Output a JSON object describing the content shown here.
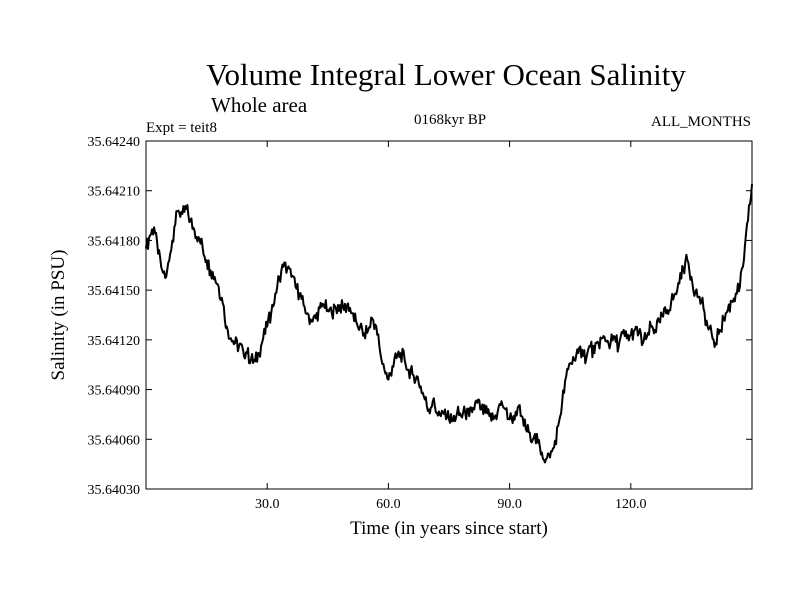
{
  "header": {
    "title": "Volume Integral Lower Ocean Salinity",
    "subtitle": "Whole area",
    "expt": "Expt = teit8",
    "period": "0168kyr BP",
    "months": "ALL_MONTHS"
  },
  "chart_data": {
    "type": "line",
    "title": "Volume Integral Lower Ocean Salinity",
    "subtitle": "Whole area",
    "xlabel": "Time (in years since start)",
    "ylabel": "Salinity (in PSU)",
    "xlim": [
      0,
      150
    ],
    "ylim": [
      35.6403,
      35.6424
    ],
    "x_ticks": [
      30,
      60,
      90,
      120
    ],
    "x_tick_labels": [
      "30.0",
      "60.0",
      "90.0",
      "120.0"
    ],
    "y_ticks": [
      35.6403,
      35.6406,
      35.6409,
      35.6412,
      35.6415,
      35.6418,
      35.6421,
      35.6424
    ],
    "y_tick_labels": [
      "35.64030",
      "35.64060",
      "35.64090",
      "35.64120",
      "35.64150",
      "35.64180",
      "35.64210",
      "35.64240"
    ],
    "series": [
      {
        "name": "Salinity",
        "color": "#000000",
        "x": [
          0,
          1,
          2,
          3,
          4,
          5,
          6,
          7,
          8,
          9,
          10,
          11,
          12,
          13,
          14,
          15,
          16,
          17,
          18,
          19,
          20,
          21,
          22,
          23,
          24,
          25,
          26,
          27,
          28,
          29,
          30,
          31,
          32,
          33,
          34,
          35,
          36,
          37,
          38,
          39,
          40,
          41,
          42,
          43,
          44,
          45,
          46,
          47,
          48,
          49,
          50,
          51,
          52,
          53,
          54,
          55,
          56,
          57,
          58,
          59,
          60,
          61,
          62,
          63,
          64,
          65,
          66,
          67,
          68,
          69,
          70,
          71,
          72,
          73,
          74,
          75,
          76,
          77,
          78,
          79,
          80,
          81,
          82,
          83,
          84,
          85,
          86,
          87,
          88,
          89,
          90,
          91,
          92,
          93,
          94,
          95,
          96,
          97,
          98,
          99,
          100,
          101,
          102,
          103,
          104,
          105,
          106,
          107,
          108,
          109,
          110,
          111,
          112,
          113,
          114,
          115,
          116,
          117,
          118,
          119,
          120,
          121,
          122,
          123,
          124,
          125,
          126,
          127,
          128,
          129,
          130,
          131,
          132,
          133,
          134,
          135,
          136,
          137,
          138,
          139,
          140,
          141,
          142,
          143,
          144,
          145,
          146,
          147,
          148,
          149,
          150
        ],
        "values": [
          35.64175,
          35.64183,
          35.64188,
          35.64172,
          35.64162,
          35.64158,
          35.64172,
          35.64188,
          35.64198,
          35.64196,
          35.64199,
          35.64192,
          35.64186,
          35.64182,
          35.64176,
          35.64168,
          35.64162,
          35.64158,
          35.64152,
          35.64142,
          35.64128,
          35.64121,
          35.64118,
          35.64116,
          35.64114,
          35.64112,
          35.64108,
          35.64107,
          35.64112,
          35.64121,
          35.64128,
          35.64136,
          35.64148,
          35.64158,
          35.64164,
          35.64163,
          35.64158,
          35.64152,
          35.64148,
          35.64141,
          35.64136,
          35.64131,
          35.64133,
          35.64139,
          35.64141,
          35.64138,
          35.64136,
          35.64139,
          35.64141,
          35.64138,
          35.64142,
          35.64136,
          35.64131,
          35.64128,
          35.64124,
          35.64126,
          35.64133,
          35.64128,
          35.64112,
          35.64102,
          35.64096,
          35.64104,
          35.64109,
          35.64112,
          35.64108,
          35.64102,
          35.64099,
          35.64098,
          35.64092,
          35.64084,
          35.64078,
          35.64083,
          35.64076,
          35.64074,
          35.64078,
          35.64072,
          35.64071,
          35.64076,
          35.64074,
          35.64076,
          35.64074,
          35.64079,
          35.64082,
          35.64078,
          35.64076,
          35.64074,
          35.64072,
          35.64076,
          35.64083,
          35.64078,
          35.64072,
          35.64074,
          35.64079,
          35.64074,
          35.64066,
          35.64064,
          35.64061,
          35.64058,
          35.64052,
          35.64048,
          35.64049,
          35.64055,
          35.64068,
          35.64082,
          35.64098,
          35.64106,
          35.64108,
          35.64112,
          35.64114,
          35.64109,
          35.64116,
          35.64112,
          35.64118,
          35.64121,
          35.64119,
          35.64118,
          35.64122,
          35.64116,
          35.64124,
          35.64121,
          35.64123,
          35.64126,
          35.64124,
          35.64118,
          35.64122,
          35.64128,
          35.64126,
          35.64131,
          35.64134,
          35.64138,
          35.64143,
          35.64148,
          35.64154,
          35.64163,
          35.64168,
          35.64158,
          35.64149,
          35.64146,
          35.64139,
          35.64128,
          35.64124,
          35.64118,
          35.64126,
          35.64132,
          35.64138,
          35.64143,
          35.64148,
          35.64152,
          35.64168,
          35.64192,
          35.64214
        ]
      }
    ]
  }
}
